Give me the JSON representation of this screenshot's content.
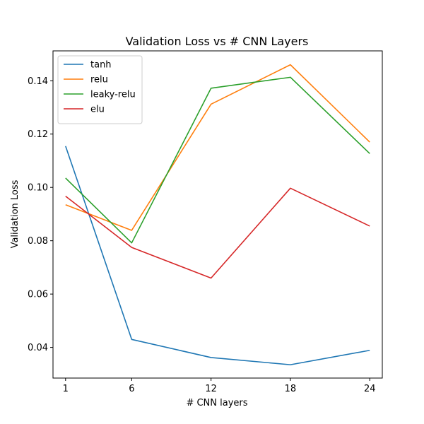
{
  "chart_data": {
    "type": "line",
    "title": "Validation Loss vs # CNN Layers",
    "xlabel": "# CNN layers",
    "ylabel": "Validation Loss",
    "x": [
      1,
      6,
      12,
      18,
      24
    ],
    "xticks": [
      "1",
      "6",
      "12",
      "18",
      "24"
    ],
    "yticks": [
      "0.04",
      "0.06",
      "0.08",
      "0.10",
      "0.12",
      "0.14"
    ],
    "xlim": [
      0.05,
      24.95
    ],
    "ylim": [
      0.0285,
      0.1512
    ],
    "grid": false,
    "legend": "top-left",
    "series": [
      {
        "name": "tanh",
        "color": "#1f77b4",
        "values": [
          0.1155,
          0.043,
          0.0362,
          0.0335,
          0.0389
        ]
      },
      {
        "name": "relu",
        "color": "#ff7f0e",
        "values": [
          0.0935,
          0.0839,
          0.1312,
          0.146,
          0.117
        ]
      },
      {
        "name": "leaky-relu",
        "color": "#2ca02c",
        "values": [
          0.1035,
          0.0792,
          0.1372,
          0.1413,
          0.1127
        ]
      },
      {
        "name": "elu",
        "color": "#d62728",
        "values": [
          0.0967,
          0.0775,
          0.066,
          0.0997,
          0.0855
        ]
      }
    ]
  }
}
